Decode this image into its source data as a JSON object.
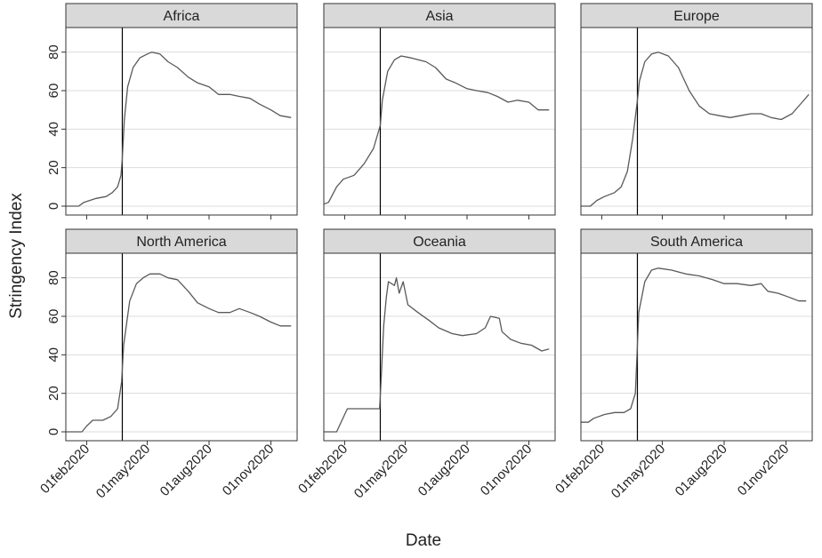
{
  "chart_data": {
    "type": "line",
    "layout": "facet-grid 2x3",
    "xlabel": "Date",
    "ylabel": "Stringency Index",
    "ylim": [
      0,
      90
    ],
    "yticks": [
      0,
      20,
      40,
      60,
      80
    ],
    "xlim": [
      "2020-01-01",
      "2020-12-10"
    ],
    "xticks": [
      "2020-02-01",
      "2020-05-01",
      "2020-08-01",
      "2020-11-01"
    ],
    "xtick_labels": [
      "01feb2020",
      "01may2020",
      "01aug2020",
      "01nov2020"
    ],
    "reference_line_date": "2020-03-25",
    "grid": true,
    "colors": {
      "line": "#595959",
      "strip": "#d9d9d9",
      "reference": "#000000"
    },
    "panels": [
      {
        "name": "Africa",
        "points": [
          [
            "2020-01-01",
            0
          ],
          [
            "2020-01-20",
            0
          ],
          [
            "2020-01-28",
            2
          ],
          [
            "2020-02-15",
            4
          ],
          [
            "2020-03-01",
            5
          ],
          [
            "2020-03-10",
            7
          ],
          [
            "2020-03-18",
            10
          ],
          [
            "2020-03-23",
            16
          ],
          [
            "2020-03-25",
            25
          ],
          [
            "2020-03-28",
            45
          ],
          [
            "2020-04-02",
            62
          ],
          [
            "2020-04-10",
            72
          ],
          [
            "2020-04-20",
            77
          ],
          [
            "2020-05-01",
            79
          ],
          [
            "2020-05-08",
            80
          ],
          [
            "2020-05-20",
            79
          ],
          [
            "2020-06-01",
            75
          ],
          [
            "2020-06-15",
            72
          ],
          [
            "2020-07-01",
            67
          ],
          [
            "2020-07-15",
            64
          ],
          [
            "2020-08-01",
            62
          ],
          [
            "2020-08-15",
            58
          ],
          [
            "2020-09-01",
            58
          ],
          [
            "2020-09-15",
            57
          ],
          [
            "2020-10-01",
            56
          ],
          [
            "2020-10-15",
            53
          ],
          [
            "2020-11-01",
            50
          ],
          [
            "2020-11-15",
            47
          ],
          [
            "2020-12-01",
            46
          ]
        ]
      },
      {
        "name": "Asia",
        "points": [
          [
            "2020-01-01",
            1
          ],
          [
            "2020-01-08",
            2
          ],
          [
            "2020-01-20",
            10
          ],
          [
            "2020-01-30",
            14
          ],
          [
            "2020-02-15",
            16
          ],
          [
            "2020-03-01",
            22
          ],
          [
            "2020-03-15",
            30
          ],
          [
            "2020-03-25",
            42
          ],
          [
            "2020-03-28",
            55
          ],
          [
            "2020-04-05",
            70
          ],
          [
            "2020-04-15",
            76
          ],
          [
            "2020-04-25",
            78
          ],
          [
            "2020-05-10",
            77
          ],
          [
            "2020-06-01",
            75
          ],
          [
            "2020-06-15",
            72
          ],
          [
            "2020-07-01",
            66
          ],
          [
            "2020-07-15",
            64
          ],
          [
            "2020-08-01",
            61
          ],
          [
            "2020-08-15",
            60
          ],
          [
            "2020-09-01",
            59
          ],
          [
            "2020-09-15",
            57
          ],
          [
            "2020-10-01",
            54
          ],
          [
            "2020-10-15",
            55
          ],
          [
            "2020-11-01",
            54
          ],
          [
            "2020-11-15",
            50
          ],
          [
            "2020-12-01",
            50
          ]
        ]
      },
      {
        "name": "Europe",
        "points": [
          [
            "2020-01-01",
            0
          ],
          [
            "2020-01-15",
            0
          ],
          [
            "2020-01-25",
            3
          ],
          [
            "2020-02-05",
            5
          ],
          [
            "2020-02-20",
            7
          ],
          [
            "2020-03-01",
            10
          ],
          [
            "2020-03-10",
            18
          ],
          [
            "2020-03-18",
            35
          ],
          [
            "2020-03-25",
            55
          ],
          [
            "2020-03-28",
            65
          ],
          [
            "2020-04-05",
            75
          ],
          [
            "2020-04-15",
            79
          ],
          [
            "2020-04-25",
            80
          ],
          [
            "2020-05-10",
            78
          ],
          [
            "2020-05-25",
            72
          ],
          [
            "2020-06-10",
            60
          ],
          [
            "2020-06-25",
            52
          ],
          [
            "2020-07-10",
            48
          ],
          [
            "2020-07-25",
            47
          ],
          [
            "2020-08-10",
            46
          ],
          [
            "2020-08-25",
            47
          ],
          [
            "2020-09-10",
            48
          ],
          [
            "2020-09-25",
            48
          ],
          [
            "2020-10-10",
            46
          ],
          [
            "2020-10-25",
            45
          ],
          [
            "2020-11-10",
            48
          ],
          [
            "2020-11-25",
            54
          ],
          [
            "2020-12-05",
            58
          ]
        ]
      },
      {
        "name": "North America",
        "points": [
          [
            "2020-01-01",
            0
          ],
          [
            "2020-01-25",
            0
          ],
          [
            "2020-02-01",
            3
          ],
          [
            "2020-02-10",
            6
          ],
          [
            "2020-02-25",
            6
          ],
          [
            "2020-03-08",
            8
          ],
          [
            "2020-03-18",
            12
          ],
          [
            "2020-03-24",
            26
          ],
          [
            "2020-03-27",
            45
          ],
          [
            "2020-04-05",
            68
          ],
          [
            "2020-04-15",
            77
          ],
          [
            "2020-04-25",
            80
          ],
          [
            "2020-05-05",
            82
          ],
          [
            "2020-05-20",
            82
          ],
          [
            "2020-06-01",
            80
          ],
          [
            "2020-06-15",
            79
          ],
          [
            "2020-07-01",
            73
          ],
          [
            "2020-07-15",
            67
          ],
          [
            "2020-08-01",
            64
          ],
          [
            "2020-08-15",
            62
          ],
          [
            "2020-09-01",
            62
          ],
          [
            "2020-09-15",
            64
          ],
          [
            "2020-10-01",
            62
          ],
          [
            "2020-10-15",
            60
          ],
          [
            "2020-11-01",
            57
          ],
          [
            "2020-11-15",
            55
          ],
          [
            "2020-12-01",
            55
          ]
        ]
      },
      {
        "name": "Oceania",
        "points": [
          [
            "2020-01-01",
            0
          ],
          [
            "2020-01-20",
            0
          ],
          [
            "2020-01-28",
            6
          ],
          [
            "2020-02-05",
            12
          ],
          [
            "2020-02-20",
            12
          ],
          [
            "2020-03-10",
            12
          ],
          [
            "2020-03-24",
            12
          ],
          [
            "2020-03-26",
            25
          ],
          [
            "2020-03-30",
            55
          ],
          [
            "2020-04-03",
            70
          ],
          [
            "2020-04-06",
            78
          ],
          [
            "2020-04-15",
            76
          ],
          [
            "2020-04-18",
            80
          ],
          [
            "2020-04-22",
            72
          ],
          [
            "2020-04-28",
            78
          ],
          [
            "2020-05-05",
            66
          ],
          [
            "2020-05-20",
            62
          ],
          [
            "2020-06-05",
            58
          ],
          [
            "2020-06-20",
            54
          ],
          [
            "2020-07-10",
            51
          ],
          [
            "2020-07-25",
            50
          ],
          [
            "2020-08-15",
            51
          ],
          [
            "2020-08-28",
            54
          ],
          [
            "2020-09-05",
            60
          ],
          [
            "2020-09-18",
            59
          ],
          [
            "2020-09-22",
            52
          ],
          [
            "2020-10-05",
            48
          ],
          [
            "2020-10-20",
            46
          ],
          [
            "2020-11-05",
            45
          ],
          [
            "2020-11-20",
            42
          ],
          [
            "2020-12-01",
            43
          ]
        ]
      },
      {
        "name": "South America",
        "points": [
          [
            "2020-01-01",
            5
          ],
          [
            "2020-01-12",
            5
          ],
          [
            "2020-01-20",
            7
          ],
          [
            "2020-02-05",
            9
          ],
          [
            "2020-02-20",
            10
          ],
          [
            "2020-03-05",
            10
          ],
          [
            "2020-03-15",
            12
          ],
          [
            "2020-03-22",
            20
          ],
          [
            "2020-03-25",
            45
          ],
          [
            "2020-03-27",
            62
          ],
          [
            "2020-04-05",
            78
          ],
          [
            "2020-04-15",
            84
          ],
          [
            "2020-04-25",
            85
          ],
          [
            "2020-05-15",
            84
          ],
          [
            "2020-06-05",
            82
          ],
          [
            "2020-06-25",
            81
          ],
          [
            "2020-07-15",
            79
          ],
          [
            "2020-08-01",
            77
          ],
          [
            "2020-08-20",
            77
          ],
          [
            "2020-09-10",
            76
          ],
          [
            "2020-09-25",
            77
          ],
          [
            "2020-10-05",
            73
          ],
          [
            "2020-10-20",
            72
          ],
          [
            "2020-11-05",
            70
          ],
          [
            "2020-11-20",
            68
          ],
          [
            "2020-12-01",
            68
          ]
        ]
      }
    ]
  }
}
